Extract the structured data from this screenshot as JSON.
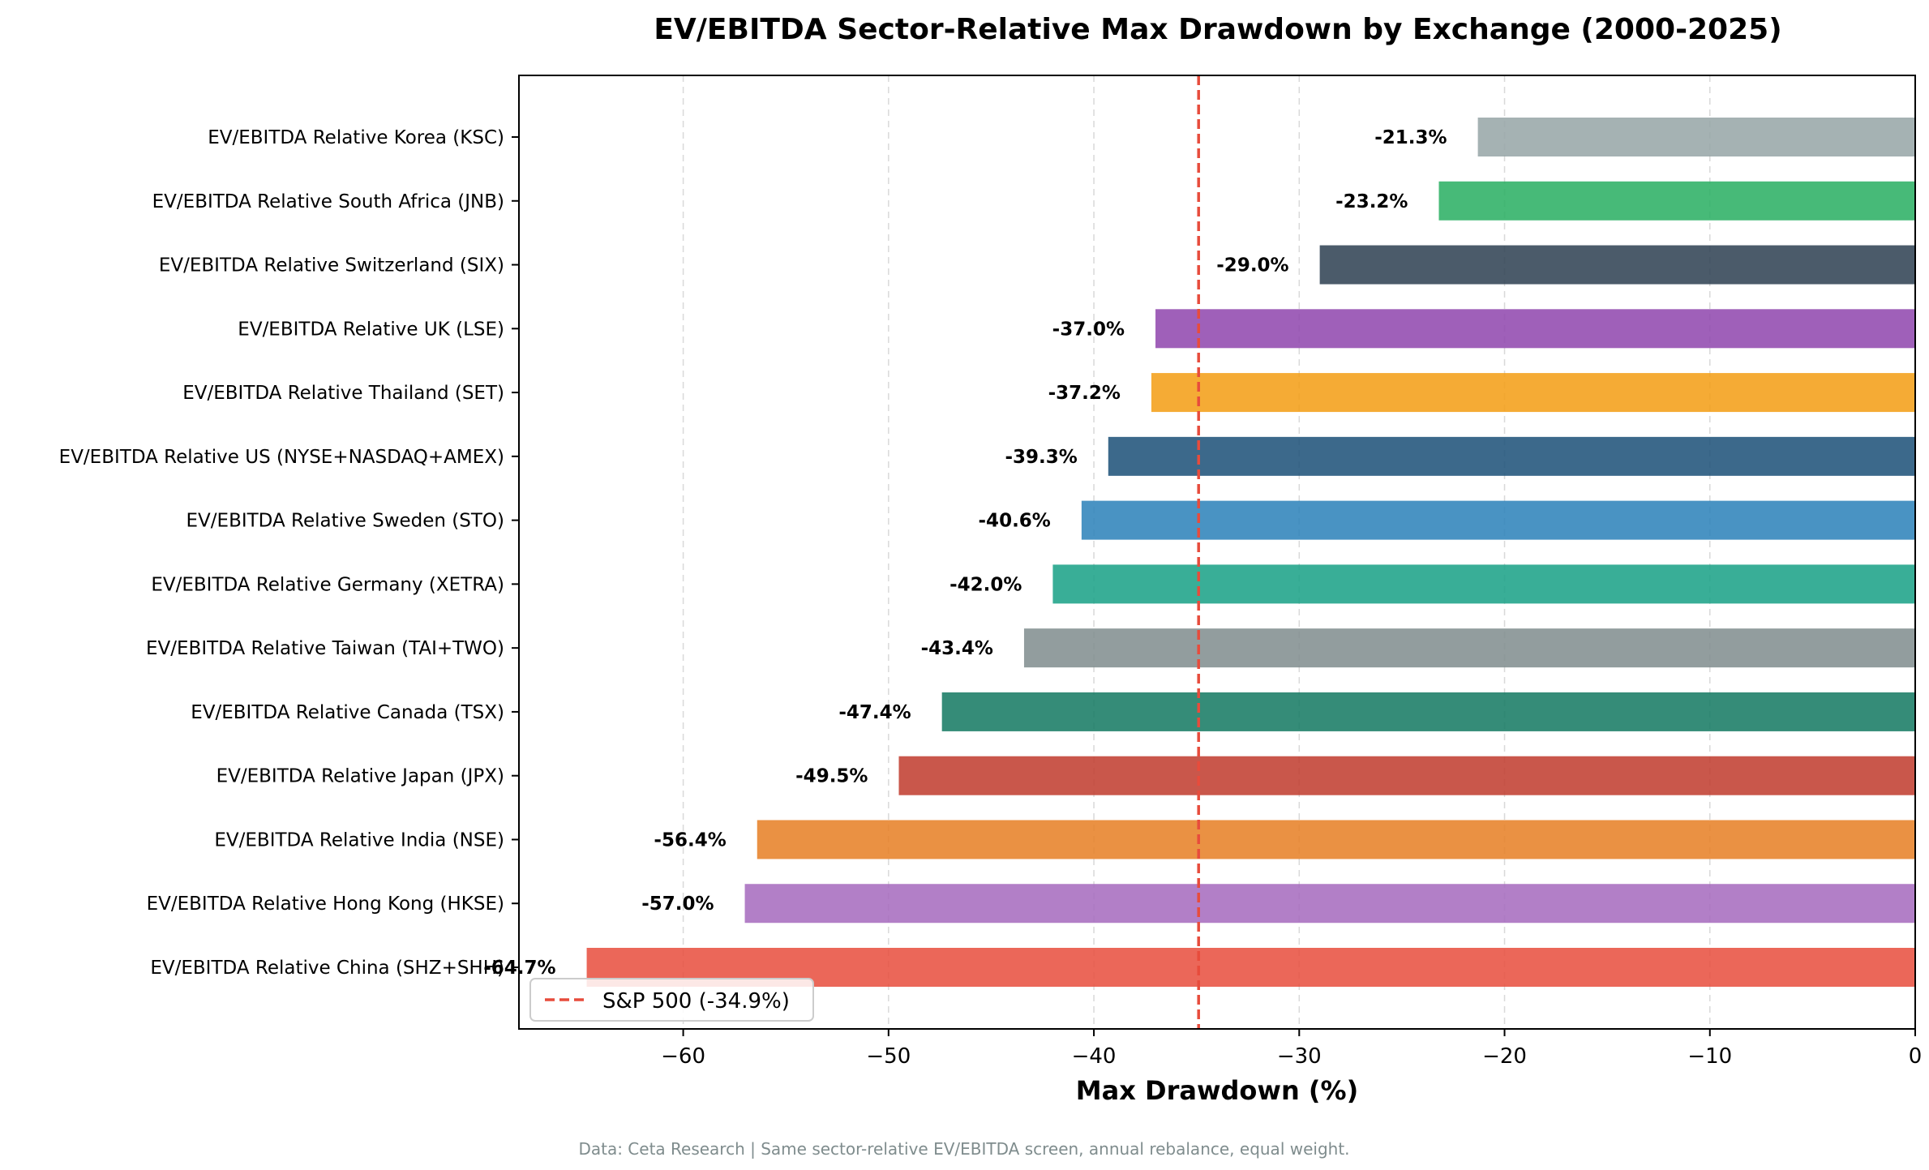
{
  "chart_data": {
    "type": "bar",
    "orientation": "horizontal",
    "title": "EV/EBITDA Sector-Relative Max Drawdown by Exchange (2000-2025)",
    "xlabel": "Max Drawdown (%)",
    "ylabel": "",
    "xlim": [
      -68,
      0
    ],
    "xticks": [
      -60,
      -50,
      -40,
      -30,
      -20,
      -10,
      0
    ],
    "xtick_labels": [
      "−60",
      "−50",
      "−40",
      "−30",
      "−20",
      "−10",
      "0"
    ],
    "grid": "vertical dashed",
    "legend_position": "lower-left",
    "categories": [
      "EV/EBITDA Relative Korea (KSC)",
      "EV/EBITDA Relative South Africa (JNB)",
      "EV/EBITDA Relative Switzerland (SIX)",
      "EV/EBITDA Relative UK (LSE)",
      "EV/EBITDA Relative Thailand (SET)",
      "EV/EBITDA Relative US (NYSE+NASDAQ+AMEX)",
      "EV/EBITDA Relative Sweden (STO)",
      "EV/EBITDA Relative Germany (XETRA)",
      "EV/EBITDA Relative Taiwan (TAI+TWO)",
      "EV/EBITDA Relative Canada (TSX)",
      "EV/EBITDA Relative Japan (JPX)",
      "EV/EBITDA Relative India (NSE)",
      "EV/EBITDA Relative Hong Kong (HKSE)",
      "EV/EBITDA Relative China (SHZ+SHH)"
    ],
    "values": [
      -21.3,
      -23.2,
      -29.0,
      -37.0,
      -37.2,
      -39.3,
      -40.6,
      -42.0,
      -43.4,
      -47.4,
      -49.5,
      -56.4,
      -57.0,
      -64.7
    ],
    "value_labels": [
      "-21.3%",
      "-23.2%",
      "-29.0%",
      "-37.0%",
      "-37.2%",
      "-39.3%",
      "-40.6%",
      "-42.0%",
      "-43.4%",
      "-47.4%",
      "-49.5%",
      "-56.4%",
      "-57.0%",
      "-64.7%"
    ],
    "colors": [
      "#95a5a6",
      "#27ae60",
      "#2c3e50",
      "#8e44ad",
      "#f39c12",
      "#1a4f77",
      "#2980b9",
      "#16a085",
      "#7f8c8d",
      "#127860",
      "#c0392b",
      "#e67e22",
      "#a569bd",
      "#e74c3c"
    ],
    "reference_line": {
      "value": -34.9,
      "label": "S&P 500 (-34.9%)",
      "color": "#e74c3c"
    }
  },
  "footnote": "Data: Ceta Research | Same sector-relative EV/EBITDA screen, annual rebalance, equal weight."
}
